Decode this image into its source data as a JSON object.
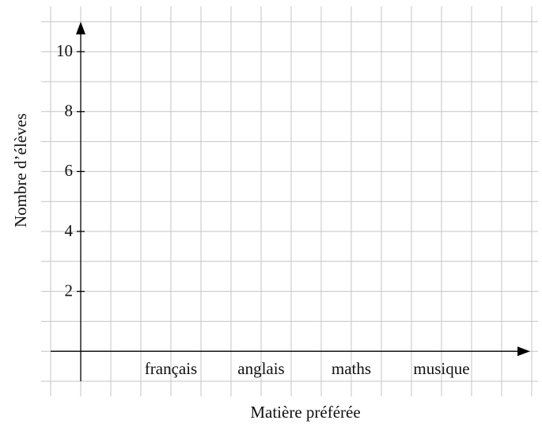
{
  "chart_data": {
    "type": "bar",
    "categories": [
      "français",
      "anglais",
      "maths",
      "musique"
    ],
    "ylabel": "Nombre d’élèves",
    "xlabel": "Matière préférée",
    "ylim": [
      -1,
      11
    ],
    "yticks": [
      2,
      4,
      6,
      8,
      10
    ],
    "grid": true
  }
}
